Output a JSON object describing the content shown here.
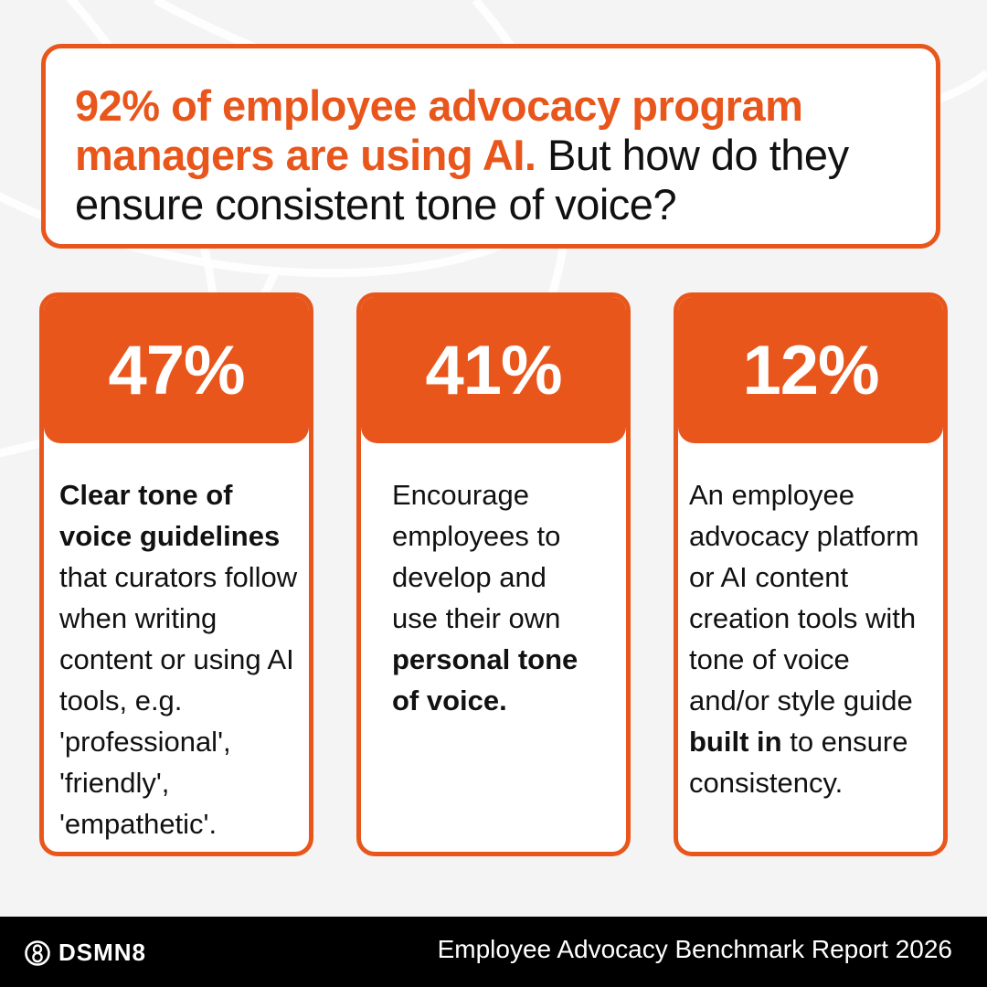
{
  "headline": {
    "accent": "92% of employee advocacy program managers are using AI.",
    "rest": " But how do they ensure consistent tone of voice?"
  },
  "cards": [
    {
      "stat": "47%",
      "text_bold": "Clear tone of voice guidelines",
      "text_rest": " that curators follow when writing content or using AI tools, e.g. 'professional', 'friendly', 'empathetic'."
    },
    {
      "stat": "41%",
      "text_before": "Encourage employees to develop and use their own ",
      "text_bold": "personal tone of voice."
    },
    {
      "stat": "12%",
      "text_before": "An employee advocacy platform or AI content creation tools with tone of voice and/or style guide ",
      "text_bold": "built in",
      "text_after": " to ensure consistency."
    }
  ],
  "footer": {
    "logo": "DSMN8",
    "title": "Employee Advocacy Benchmark Report 2026"
  },
  "colors": {
    "accent": "#e8561c",
    "background": "#f4f4f4",
    "footer": "#000000"
  }
}
